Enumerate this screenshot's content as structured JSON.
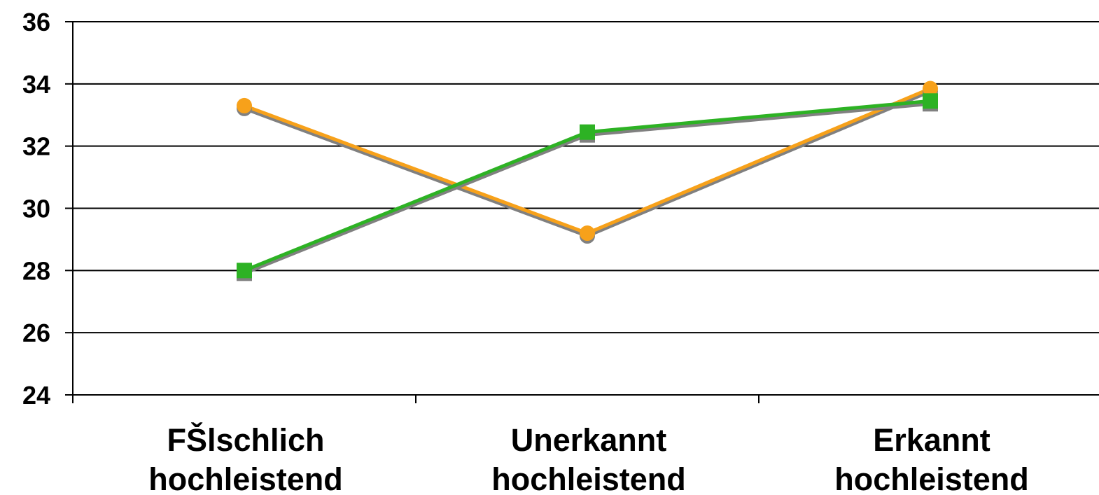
{
  "chart_data": {
    "type": "line",
    "categories": [
      [
        "FŠlschlich",
        "hochleistend"
      ],
      [
        "Unerkannt",
        "hochleistend"
      ],
      [
        "Erkannt",
        "hochleistend"
      ]
    ],
    "ylim": [
      24,
      36
    ],
    "yticks": [
      24,
      26,
      28,
      30,
      32,
      34,
      36
    ],
    "grid": true,
    "series": [
      {
        "values": [
          33.3,
          29.2,
          33.85
        ],
        "color": "#F7A11A",
        "marker": "circle"
      },
      {
        "values": [
          28.0,
          32.45,
          33.45
        ],
        "color": "#2DB224",
        "marker": "square"
      }
    ],
    "shadow_color": "#808080"
  }
}
